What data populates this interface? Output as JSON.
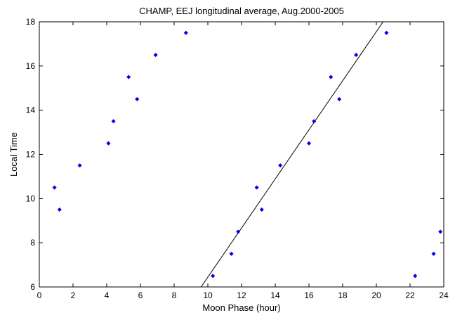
{
  "chart_data": {
    "type": "scatter",
    "title": "CHAMP, EEJ longitudinal average, Aug.2000-2005",
    "xlabel": "Moon Phase (hour)",
    "ylabel": "Local Time",
    "xlim": [
      0,
      24
    ],
    "ylim": [
      6,
      18
    ],
    "xticks": [
      0,
      2,
      4,
      6,
      8,
      10,
      12,
      14,
      16,
      18,
      20,
      22,
      24
    ],
    "yticks": [
      6,
      8,
      10,
      12,
      14,
      16,
      18
    ],
    "grid": false,
    "legend": "none",
    "series": [
      {
        "marker": "diamond",
        "color": "#0000ee",
        "points": [
          {
            "x": 0.9,
            "y": 10.5
          },
          {
            "x": 1.2,
            "y": 9.5
          },
          {
            "x": 2.4,
            "y": 11.5
          },
          {
            "x": 4.1,
            "y": 12.5
          },
          {
            "x": 4.4,
            "y": 13.5
          },
          {
            "x": 5.3,
            "y": 15.5
          },
          {
            "x": 5.8,
            "y": 14.5
          },
          {
            "x": 6.9,
            "y": 16.5
          },
          {
            "x": 8.7,
            "y": 17.5
          },
          {
            "x": 10.3,
            "y": 6.5
          },
          {
            "x": 11.4,
            "y": 7.5
          },
          {
            "x": 11.8,
            "y": 8.5
          },
          {
            "x": 12.9,
            "y": 10.5
          },
          {
            "x": 13.2,
            "y": 9.5
          },
          {
            "x": 14.3,
            "y": 11.5
          },
          {
            "x": 16.0,
            "y": 12.5
          },
          {
            "x": 16.3,
            "y": 13.5
          },
          {
            "x": 17.3,
            "y": 15.5
          },
          {
            "x": 17.8,
            "y": 14.5
          },
          {
            "x": 18.8,
            "y": 16.5
          },
          {
            "x": 20.6,
            "y": 17.5
          },
          {
            "x": 22.3,
            "y": 6.5
          },
          {
            "x": 23.4,
            "y": 7.5
          },
          {
            "x": 23.8,
            "y": 8.5
          }
        ]
      }
    ],
    "fit_line": {
      "color": "#000000",
      "points": [
        {
          "x": 9.6,
          "y": 6.0
        },
        {
          "x": 20.4,
          "y": 18.0
        }
      ]
    }
  }
}
